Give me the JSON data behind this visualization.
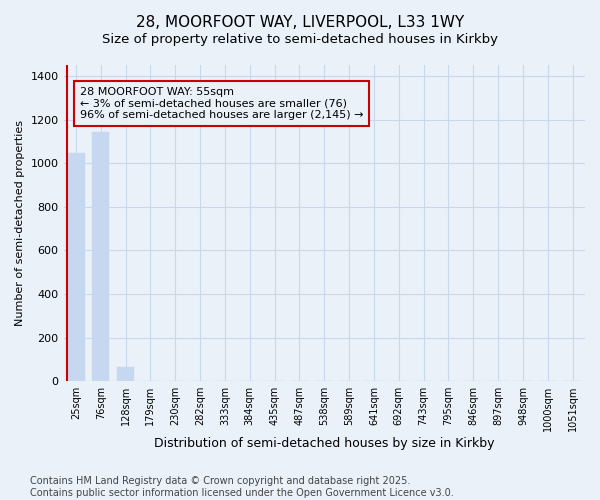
{
  "title_line1": "28, MOORFOOT WAY, LIVERPOOL, L33 1WY",
  "title_line2": "Size of property relative to semi-detached houses in Kirkby",
  "xlabel": "Distribution of semi-detached houses by size in Kirkby",
  "ylabel": "Number of semi-detached properties",
  "bins": [
    "25sqm",
    "76sqm",
    "128sqm",
    "179sqm",
    "230sqm",
    "282sqm",
    "333sqm",
    "384sqm",
    "435sqm",
    "487sqm",
    "538sqm",
    "589sqm",
    "641sqm",
    "692sqm",
    "743sqm",
    "795sqm",
    "846sqm",
    "897sqm",
    "948sqm",
    "1000sqm",
    "1051sqm"
  ],
  "values": [
    1047,
    1143,
    63,
    0,
    0,
    0,
    0,
    0,
    0,
    0,
    0,
    0,
    0,
    0,
    0,
    0,
    0,
    0,
    0,
    0,
    0
  ],
  "bar_color": "#c5d8ef",
  "bar_edgecolor": "#c5d8ef",
  "highlight_line_color": "#cc0000",
  "annotation_text": "28 MOORFOOT WAY: 55sqm\n← 3% of semi-detached houses are smaller (76)\n96% of semi-detached houses are larger (2,145) →",
  "ylim": [
    0,
    1450
  ],
  "yticks": [
    0,
    200,
    400,
    600,
    800,
    1000,
    1200,
    1400
  ],
  "background_color": "#eaf1f9",
  "grid_color": "#c8d8ec",
  "footnote": "Contains HM Land Registry data © Crown copyright and database right 2025.\nContains public sector information licensed under the Open Government Licence v3.0.",
  "title_fontsize": 11,
  "subtitle_fontsize": 9.5,
  "annotation_fontsize": 8,
  "footnote_fontsize": 7,
  "ylabel_fontsize": 8,
  "xlabel_fontsize": 9
}
